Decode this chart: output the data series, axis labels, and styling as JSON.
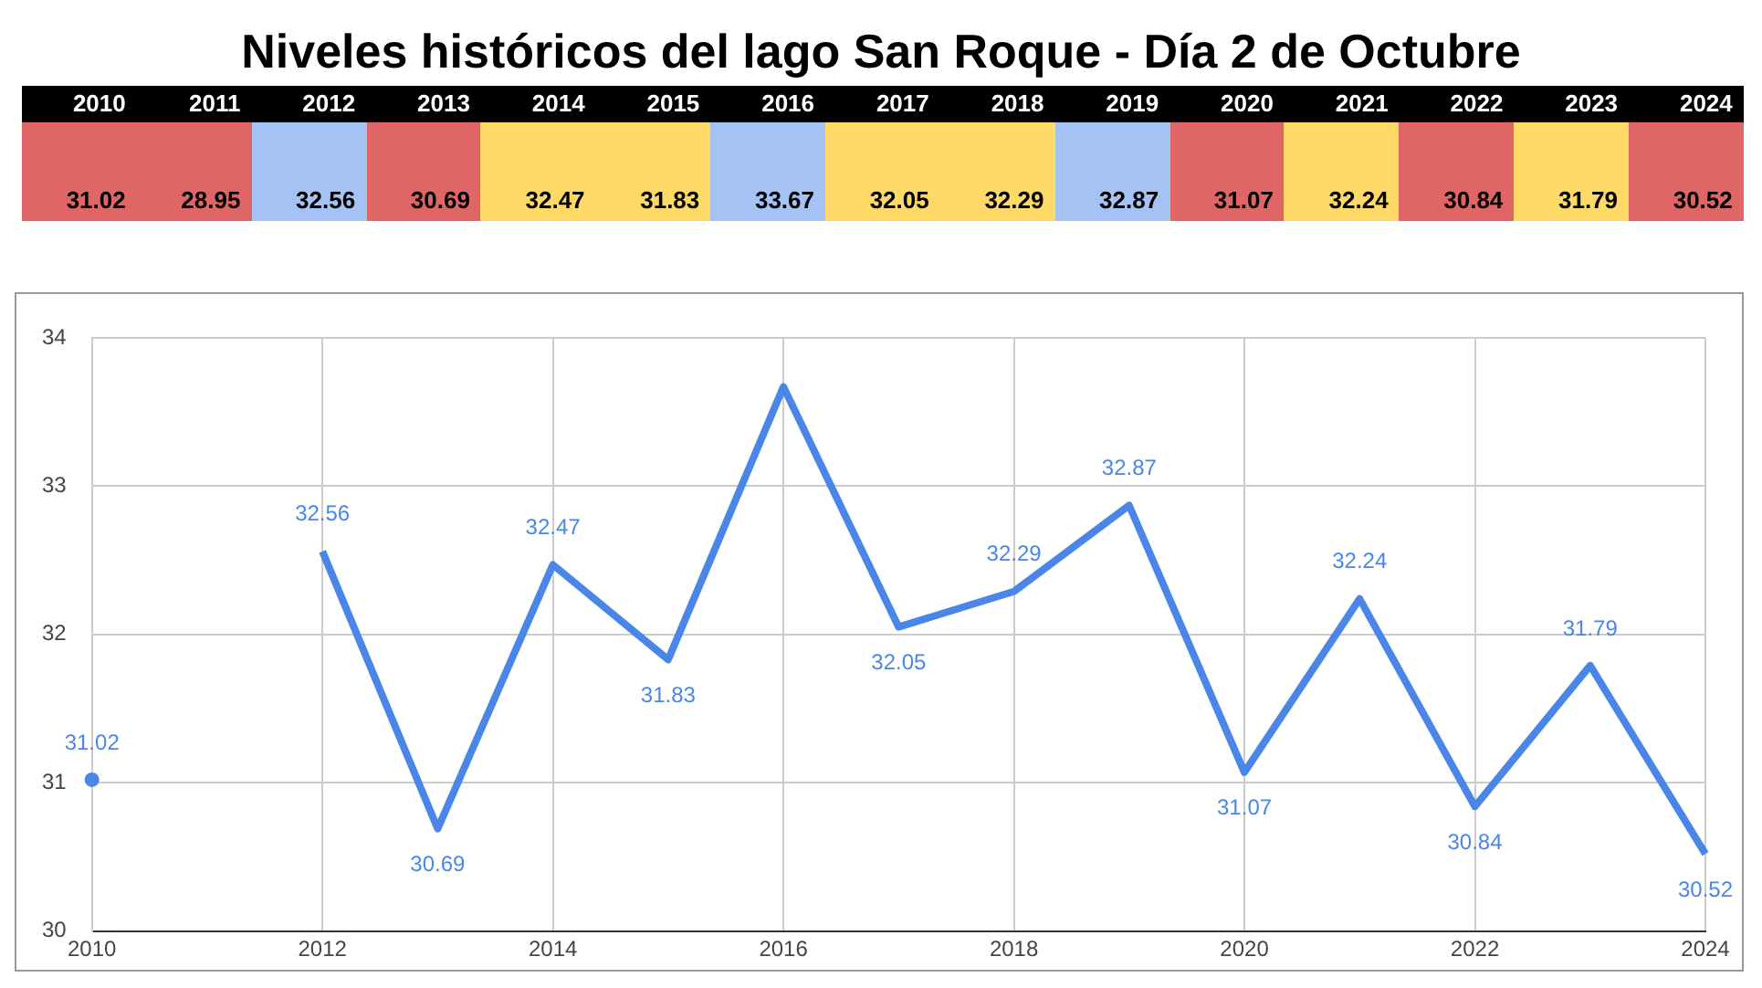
{
  "chart_data": [
    {
      "type": "heatmap",
      "title": "Niveles históricos del lago San Roque - Día 2 de Octubre",
      "categories": [
        "2010",
        "2011",
        "2012",
        "2013",
        "2014",
        "2015",
        "2016",
        "2017",
        "2018",
        "2019",
        "2020",
        "2021",
        "2022",
        "2023",
        "2024"
      ],
      "y_categories": [
        null
      ],
      "cells": [
        [
          31.02,
          28.95,
          32.56,
          30.69,
          32.47,
          31.83,
          33.67,
          32.05,
          32.29,
          32.87,
          31.07,
          32.24,
          30.84,
          31.79,
          30.52
        ]
      ],
      "colors": [
        "#e06666",
        "#e06666",
        "#a4c2f4",
        "#e06666",
        "#ffd966",
        "#ffd966",
        "#a4c2f4",
        "#ffd966",
        "#ffd966",
        "#a4c2f4",
        "#e06666",
        "#ffd966",
        "#e06666",
        "#ffd966",
        "#e06666"
      ],
      "data_labels": true
    },
    {
      "type": "line",
      "x": [
        2010,
        2011,
        2012,
        2013,
        2014,
        2015,
        2016,
        2017,
        2018,
        2019,
        2020,
        2021,
        2022,
        2023,
        2024
      ],
      "series": [
        {
          "color": "#4a86e8",
          "values": [
            31.02,
            null,
            32.56,
            30.69,
            32.47,
            31.83,
            33.67,
            32.05,
            32.29,
            32.87,
            31.07,
            32.24,
            30.84,
            31.79,
            30.52
          ],
          "value_labels": [
            "31.02",
            null,
            "32.56",
            "30.69",
            "32.47",
            "31.83",
            null,
            "32.05",
            "32.29",
            "32.87",
            "31.07",
            "32.24",
            "30.84",
            "31.79",
            "30.52"
          ]
        }
      ],
      "xlim": [
        2010,
        2024
      ],
      "xticks": [
        2010,
        2012,
        2014,
        2016,
        2018,
        2020,
        2022,
        2024
      ],
      "ylim": [
        30,
        34
      ],
      "yticks": [
        30,
        31,
        32,
        33,
        34
      ],
      "grid": true,
      "legend": false,
      "marker": "none",
      "line_style": "solid"
    }
  ]
}
